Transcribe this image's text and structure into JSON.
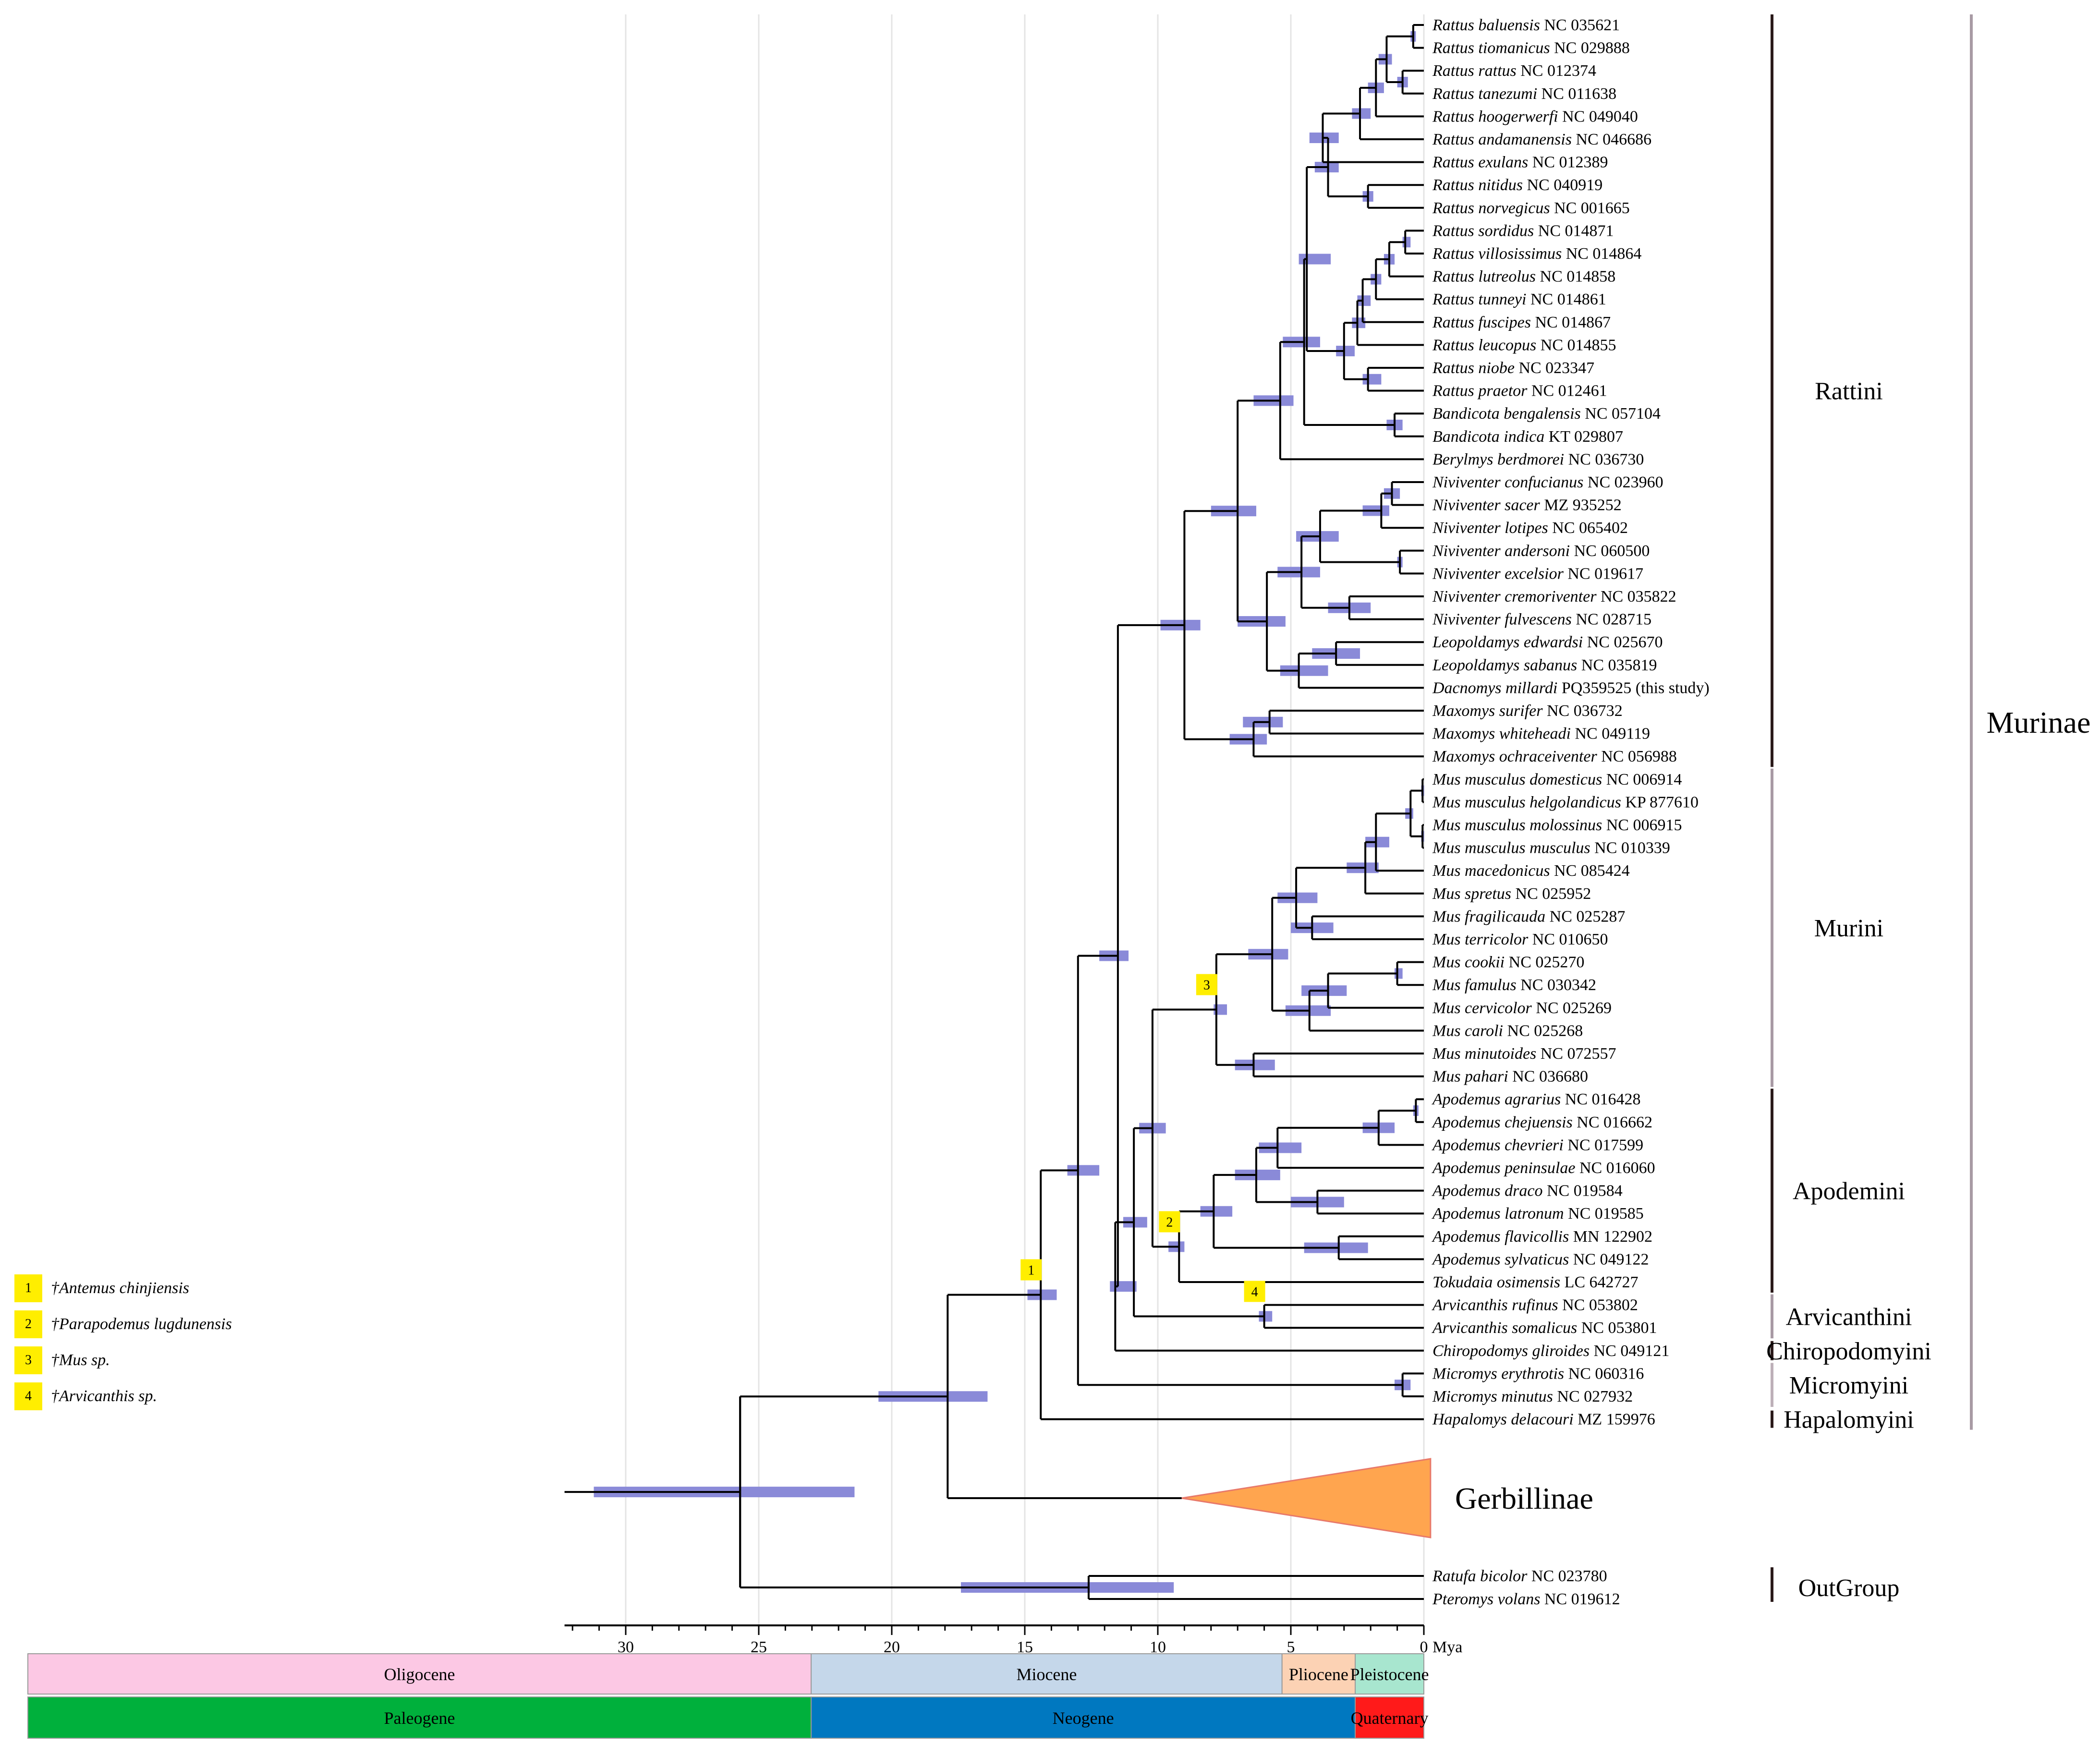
{
  "taxa": [
    {
      "genus": "Rattus baluensis",
      "acc": "NC 035621"
    },
    {
      "genus": "Rattus tiomanicus",
      "acc": "NC 029888"
    },
    {
      "genus": "Rattus rattus",
      "acc": "NC 012374"
    },
    {
      "genus": "Rattus tanezumi",
      "acc": "NC 011638"
    },
    {
      "genus": "Rattus hoogerwerfi",
      "acc": "NC 049040"
    },
    {
      "genus": "Rattus andamanensis",
      "acc": "NC 046686"
    },
    {
      "genus": "Rattus exulans",
      "acc": "NC 012389"
    },
    {
      "genus": "Rattus nitidus",
      "acc": "NC 040919"
    },
    {
      "genus": "Rattus norvegicus",
      "acc": "NC 001665"
    },
    {
      "genus": "Rattus sordidus",
      "acc": "NC 014871"
    },
    {
      "genus": "Rattus villosissimus",
      "acc": "NC 014864"
    },
    {
      "genus": "Rattus lutreolus",
      "acc": "NC 014858"
    },
    {
      "genus": "Rattus tunneyi",
      "acc": "NC 014861"
    },
    {
      "genus": "Rattus fuscipes",
      "acc": "NC 014867"
    },
    {
      "genus": "Rattus leucopus",
      "acc": "NC 014855"
    },
    {
      "genus": "Rattus niobe",
      "acc": "NC 023347"
    },
    {
      "genus": "Rattus praetor",
      "acc": "NC 012461"
    },
    {
      "genus": "Bandicota bengalensis",
      "acc": "NC 057104"
    },
    {
      "genus": "Bandicota indica",
      "acc": "KT 029807"
    },
    {
      "genus": "Berylmys berdmorei",
      "acc": "NC 036730"
    },
    {
      "genus": "Niviventer confucianus",
      "acc": "NC 023960"
    },
    {
      "genus": "Niviventer sacer",
      "acc": "MZ 935252"
    },
    {
      "genus": "Niviventer lotipes",
      "acc": "NC 065402"
    },
    {
      "genus": "Niviventer andersoni",
      "acc": "NC 060500"
    },
    {
      "genus": "Niviventer excelsior",
      "acc": "NC 019617"
    },
    {
      "genus": "Niviventer cremoriventer",
      "acc": "NC 035822"
    },
    {
      "genus": "Niviventer fulvescens",
      "acc": "NC 028715"
    },
    {
      "genus": "Leopoldamys edwardsi",
      "acc": "NC 025670"
    },
    {
      "genus": "Leopoldamys sabanus",
      "acc": "NC 035819"
    },
    {
      "genus": "Dacnomys millardi",
      "acc": "PQ359525 (this study)"
    },
    {
      "genus": "Maxomys surifer",
      "acc": "NC 036732"
    },
    {
      "genus": "Maxomys whiteheadi",
      "acc": "NC 049119"
    },
    {
      "genus": "Maxomys ochraceiventer",
      "acc": "NC 056988"
    },
    {
      "genus": "Mus musculus domesticus",
      "acc": "NC 006914"
    },
    {
      "genus": "Mus musculus helgolandicus",
      "acc": "KP 877610"
    },
    {
      "genus": "Mus musculus molossinus",
      "acc": "NC 006915"
    },
    {
      "genus": "Mus musculus musculus",
      "acc": "NC 010339"
    },
    {
      "genus": "Mus macedonicus",
      "acc": "NC 085424"
    },
    {
      "genus": "Mus spretus",
      "acc": "NC 025952"
    },
    {
      "genus": "Mus fragilicauda",
      "acc": "NC 025287"
    },
    {
      "genus": "Mus terricolor",
      "acc": "NC 010650"
    },
    {
      "genus": "Mus cookii",
      "acc": "NC 025270"
    },
    {
      "genus": "Mus famulus",
      "acc": "NC 030342"
    },
    {
      "genus": "Mus cervicolor",
      "acc": "NC 025269"
    },
    {
      "genus": "Mus caroli",
      "acc": "NC 025268"
    },
    {
      "genus": "Mus minutoides",
      "acc": "NC 072557"
    },
    {
      "genus": "Mus pahari",
      "acc": "NC 036680"
    },
    {
      "genus": "Apodemus agrarius",
      "acc": "NC 016428"
    },
    {
      "genus": "Apodemus chejuensis",
      "acc": "NC 016662"
    },
    {
      "genus": "Apodemus chevrieri",
      "acc": "NC 017599"
    },
    {
      "genus": "Apodemus peninsulae",
      "acc": "NC 016060"
    },
    {
      "genus": "Apodemus draco",
      "acc": "NC 019584"
    },
    {
      "genus": "Apodemus latronum",
      "acc": "NC 019585"
    },
    {
      "genus": "Apodemus flavicollis",
      "acc": "MN 122902"
    },
    {
      "genus": "Apodemus sylvaticus",
      "acc": "NC 049122"
    },
    {
      "genus": "Tokudaia osimensis",
      "acc": "LC 642727"
    },
    {
      "genus": "Arvicanthis rufinus",
      "acc": "NC 053802"
    },
    {
      "genus": "Arvicanthis somalicus",
      "acc": "NC 053801"
    },
    {
      "genus": "Chiropodomys gliroides",
      "acc": "NC 049121"
    },
    {
      "genus": "Micromys erythrotis",
      "acc": "NC 060316"
    },
    {
      "genus": "Micromys minutus",
      "acc": "NC 027932"
    },
    {
      "genus": "Hapalomys delacouri",
      "acc": "MZ 159976"
    }
  ],
  "outgroup_taxa": [
    {
      "genus": "Ratufa bicolor",
      "acc": "NC 023780"
    },
    {
      "genus": "Pteromys volans",
      "acc": "NC 019612"
    }
  ],
  "groups": {
    "rattini": "Rattini",
    "murini": "Murini",
    "apodemini": "Apodemini",
    "arvicanthini": "Arvicanthini",
    "chiropodomyini": "Chiropodomyini",
    "micromyini": "Micromyini",
    "hapalomyini": "Hapalomyini",
    "murinae": "Murinae",
    "gerbillinae": "Gerbillinae",
    "outgroup": "OutGroup"
  },
  "axis": {
    "ticks": [
      "30",
      "25",
      "20",
      "15",
      "10",
      "5",
      "0"
    ],
    "unit": "Mya"
  },
  "epochs": [
    "Oligocene",
    "Miocene",
    "Pliocene",
    "Pleistocene"
  ],
  "periods": [
    "Paleogene",
    "Neogene",
    "Quaternary"
  ],
  "calibrations": [
    {
      "num": "1",
      "name": "†Antemus chinjiensis"
    },
    {
      "num": "2",
      "name": "†Parapodemus lugdunensis"
    },
    {
      "num": "3",
      "name": "†Mus sp."
    },
    {
      "num": "4",
      "name": "†Arvicanthis sp."
    }
  ],
  "colors": {
    "bar": "#8a8ad8",
    "gerbil_fill": "#ffa54f",
    "gerbil_stroke": "#e8796a",
    "calib": "#ffee00",
    "oligocene": "#fcc8e4",
    "miocene": "#c5d7ea",
    "pliocene": "#fcd2b4",
    "pleistocene": "#a8e6cf",
    "paleogene": "#00b03c",
    "neogene": "#0078c0",
    "quaternary": "#ff1a1a"
  }
}
